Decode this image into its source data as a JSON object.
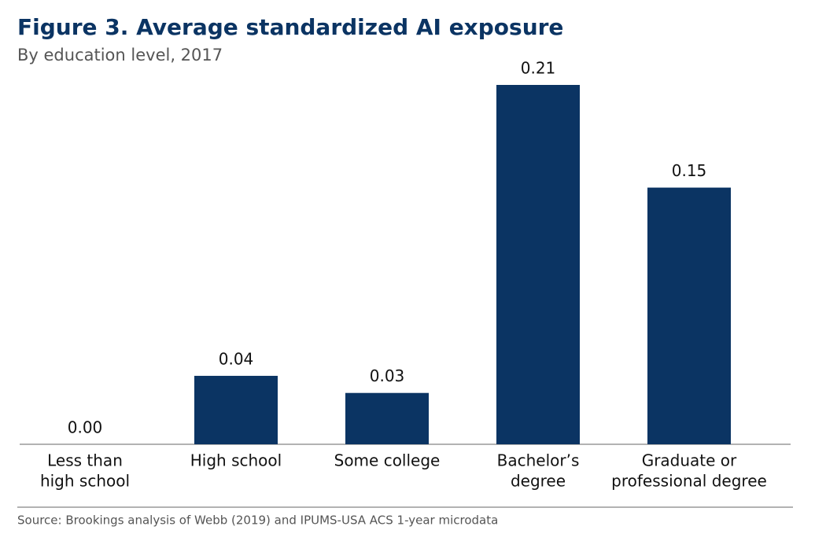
{
  "chart_data": {
    "type": "bar",
    "title": "Figure 3. Average standardized AI exposure",
    "subtitle": "By education level, 2017",
    "categories": [
      [
        "Less than",
        "high school"
      ],
      [
        "High school"
      ],
      [
        "Some college"
      ],
      [
        "Bachelor’s",
        "degree"
      ],
      [
        "Graduate or",
        "professional degree"
      ]
    ],
    "values": [
      0,
      0.04,
      0.03,
      0.21,
      0.15
    ],
    "value_labels": [
      "0.00",
      "0.04",
      "0.03",
      "0.21",
      "0.15"
    ],
    "color": "#0b3463",
    "ylim": [
      0,
      0.21
    ],
    "source": "Source: Brookings analysis of Webb (2019) and IPUMS-USA ACS 1-year microdata"
  }
}
